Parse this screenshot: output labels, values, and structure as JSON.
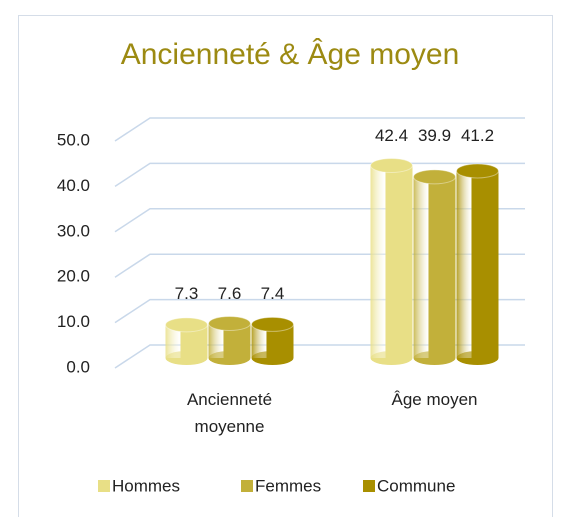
{
  "chart_data": {
    "type": "bar",
    "title": "Ancienneté & Âge moyen",
    "categories": [
      "Ancienneté moyenne",
      "Âge moyen"
    ],
    "series": [
      {
        "name": "Hommes",
        "color": "#e8df86",
        "values": [
          7.3,
          42.4
        ]
      },
      {
        "name": "Femmes",
        "color": "#c2b03a",
        "values": [
          7.6,
          39.9
        ]
      },
      {
        "name": "Commune",
        "color": "#a88f00",
        "values": [
          7.4,
          41.2
        ]
      }
    ],
    "ylim": [
      0,
      50
    ],
    "yticks": [
      {
        "value": 0,
        "label": "0.0"
      },
      {
        "value": 10,
        "label": "10.0"
      },
      {
        "value": 20,
        "label": "20.0"
      },
      {
        "value": 30,
        "label": "30.0"
      },
      {
        "value": 40,
        "label": "40.0"
      },
      {
        "value": 50,
        "label": "50.0"
      }
    ],
    "grid": true,
    "legend": "bottom"
  }
}
